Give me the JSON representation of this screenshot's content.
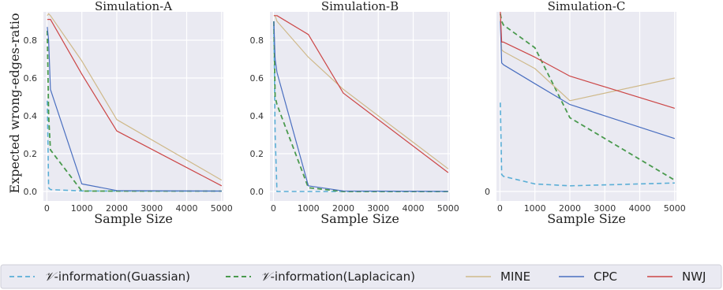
{
  "ylabel": "Expected wrong-edges-ratio",
  "xlabel": "Sample Size",
  "legend": [
    {
      "math": "𝒱",
      "label": "-information(Guassian)",
      "color": "#5aaed6",
      "dash": "6,4",
      "width": 1.6
    },
    {
      "math": "𝒱",
      "label": "-information(Laplacican)",
      "color": "#4a9a4e",
      "dash": "6,4",
      "width": 1.8
    },
    {
      "math": "",
      "label": "MINE",
      "color": "#cfb98a",
      "dash": "",
      "width": 1.2
    },
    {
      "math": "",
      "label": "CPC",
      "color": "#4a6fc0",
      "dash": "",
      "width": 1.2
    },
    {
      "math": "",
      "label": "NWJ",
      "color": "#cc4646",
      "dash": "",
      "width": 1.2
    }
  ],
  "chart_data": [
    {
      "type": "line",
      "title": "Simulation-A",
      "xlabel": "Sample Size",
      "ylabel": "Expected wrong-edges-ratio",
      "xlim": [
        -100,
        5050
      ],
      "ylim": [
        -0.05,
        0.95
      ],
      "xticks": [
        0,
        1000,
        2000,
        3000,
        4000,
        5000
      ],
      "yticks": [
        0.0,
        0.2,
        0.4,
        0.6,
        0.8
      ],
      "ytick_labels": [
        "0.0",
        "0.2",
        "0.4",
        "0.6",
        "0.8"
      ],
      "grid": true,
      "series": [
        {
          "name": "𝒱-information(Guassian)",
          "x": [
            10,
            50,
            100,
            1000,
            2000,
            5000
          ],
          "y": [
            0.48,
            0.02,
            0.01,
            0.003,
            0.002,
            0.002
          ]
        },
        {
          "name": "𝒱-information(Laplacican)",
          "x": [
            10,
            50,
            100,
            1000,
            2000,
            5000
          ],
          "y": [
            0.85,
            0.4,
            0.22,
            0.002,
            0.002,
            0.002
          ]
        },
        {
          "name": "MINE",
          "x": [
            10,
            50,
            100,
            1000,
            2000,
            5000
          ],
          "y": [
            0.93,
            0.94,
            0.93,
            0.69,
            0.38,
            0.06
          ]
        },
        {
          "name": "CPC",
          "x": [
            10,
            50,
            100,
            1000,
            2000,
            5000
          ],
          "y": [
            0.87,
            0.8,
            0.54,
            0.04,
            0.005,
            0.002
          ]
        },
        {
          "name": "NWJ",
          "x": [
            10,
            50,
            100,
            1000,
            2000,
            5000
          ],
          "y": [
            0.91,
            0.91,
            0.91,
            0.62,
            0.32,
            0.03
          ]
        }
      ]
    },
    {
      "type": "line",
      "title": "Simulation-B",
      "xlabel": "Sample Size",
      "ylabel": "",
      "xlim": [
        -100,
        5050
      ],
      "ylim": [
        -0.05,
        0.95
      ],
      "xticks": [
        0,
        1000,
        2000,
        3000,
        4000,
        5000
      ],
      "yticks": [
        0.0,
        0.2,
        0.4,
        0.6,
        0.8
      ],
      "ytick_labels": [
        "0.0",
        "0.2",
        "0.4",
        "0.6",
        "0.8"
      ],
      "grid": true,
      "series": [
        {
          "name": "𝒱-information(Guassian)",
          "x": [
            10,
            50,
            100,
            1000,
            2000,
            5000
          ],
          "y": [
            0.88,
            0.3,
            0.0,
            0.0,
            0.0,
            0.0
          ]
        },
        {
          "name": "𝒱-information(Laplacican)",
          "x": [
            10,
            50,
            100,
            1000,
            2000,
            5000
          ],
          "y": [
            0.9,
            0.5,
            0.46,
            0.02,
            0.0,
            0.0
          ]
        },
        {
          "name": "MINE",
          "x": [
            10,
            50,
            100,
            1000,
            2000,
            5000
          ],
          "y": [
            0.93,
            0.93,
            0.9,
            0.71,
            0.54,
            0.12
          ]
        },
        {
          "name": "CPC",
          "x": [
            10,
            50,
            100,
            1000,
            2000,
            5000
          ],
          "y": [
            0.9,
            0.7,
            0.63,
            0.03,
            0.003,
            0.001
          ]
        },
        {
          "name": "NWJ",
          "x": [
            10,
            50,
            100,
            1000,
            2000,
            5000
          ],
          "y": [
            0.93,
            0.93,
            0.93,
            0.83,
            0.52,
            0.1
          ]
        }
      ]
    },
    {
      "type": "line",
      "title": "Simulation-C",
      "xlabel": "Sample Size",
      "ylabel": "",
      "xlim": [
        -100,
        5050
      ],
      "ylim": [
        -0.05,
        0.95
      ],
      "xticks": [
        0,
        1000,
        2000,
        3000,
        4000,
        5000
      ],
      "yticks": [
        0.0
      ],
      "ytick_labels": [
        "0"
      ],
      "grid": true,
      "series": [
        {
          "name": "𝒱-information(Guassian)",
          "x": [
            10,
            50,
            100,
            1000,
            2000,
            5000
          ],
          "y": [
            0.47,
            0.09,
            0.08,
            0.04,
            0.03,
            0.045
          ]
        },
        {
          "name": "𝒱-information(Laplacican)",
          "x": [
            10,
            50,
            100,
            1000,
            2000,
            5000
          ],
          "y": [
            0.94,
            0.9,
            0.88,
            0.76,
            0.39,
            0.06
          ]
        },
        {
          "name": "MINE",
          "x": [
            10,
            50,
            100,
            1000,
            2000,
            5000
          ],
          "y": [
            0.91,
            0.75,
            0.74,
            0.65,
            0.48,
            0.6
          ]
        },
        {
          "name": "CPC",
          "x": [
            10,
            50,
            100,
            1000,
            2000,
            5000
          ],
          "y": [
            0.9,
            0.68,
            0.67,
            0.57,
            0.46,
            0.28
          ]
        },
        {
          "name": "NWJ",
          "x": [
            10,
            50,
            100,
            1000,
            2000,
            5000
          ],
          "y": [
            0.95,
            0.79,
            0.79,
            0.71,
            0.61,
            0.44
          ]
        }
      ]
    }
  ]
}
